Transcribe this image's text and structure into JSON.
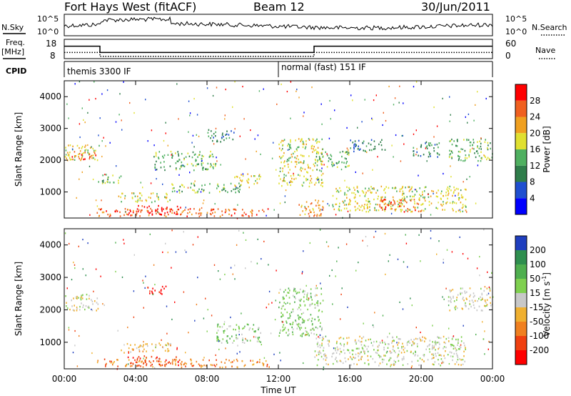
{
  "header": {
    "station": "Fort Hays West (fitACF)",
    "beam": "Beam 12",
    "date": "30/Jun/2011"
  },
  "side_labels": {
    "nsky": "N.Sky",
    "nsearch": "N.Search",
    "freq_line1": "Freq.",
    "freq_line2": "[MHz]",
    "nave": "Nave",
    "cpid": "CPID"
  },
  "noise_panel": {
    "left_ticks": [
      "10^5",
      "10^0"
    ],
    "right_ticks": [
      "10^5",
      "10^0"
    ]
  },
  "freq_panel": {
    "left_ticks": [
      "18",
      "8"
    ],
    "right_ticks": [
      "60",
      "0"
    ],
    "freq_steps": [
      [
        0,
        15.0
      ],
      [
        2.0,
        15.0
      ],
      [
        2.0,
        11.0
      ],
      [
        14.0,
        11.0
      ],
      [
        14.0,
        15.0
      ],
      [
        24.0,
        15.0
      ]
    ],
    "nave_steps": [
      [
        0,
        11.0
      ],
      [
        2.0,
        11.0
      ],
      [
        2.0,
        8.5
      ],
      [
        14.0,
        8.5
      ],
      [
        14.0,
        11.0
      ],
      [
        24.0,
        11.0
      ]
    ]
  },
  "cpid_panel": {
    "segments": [
      {
        "start_hour": 0,
        "label": "themis 3300 IF"
      },
      {
        "start_hour": 12,
        "label": "normal (fast) 151 IF"
      }
    ]
  },
  "chart_data": [
    {
      "type": "heatmap",
      "name": "power",
      "ylabel": "Slant Range [km]",
      "xlabel": "Time UT",
      "xlim": [
        0,
        24
      ],
      "ylim": [
        180,
        4500
      ],
      "y_ticks": [
        1000,
        2000,
        3000,
        4000
      ],
      "y_tick_labels": [
        "1000",
        "2000",
        "3000",
        "4000"
      ],
      "x_ticks": [
        0,
        4,
        8,
        12,
        16,
        20,
        24
      ],
      "x_tick_labels": [
        "00:00",
        "04:00",
        "08:00",
        "12:00",
        "16:00",
        "20:00",
        "00:00"
      ],
      "colorbar": {
        "label": "Power [dB]",
        "ticks": [
          "4",
          "8",
          "12",
          "16",
          "20",
          "24",
          "28"
        ],
        "colors": [
          "#0000ff",
          "#1f4fd0",
          "#2f7d4a",
          "#4fb060",
          "#e0e030",
          "#f0a020",
          "#f06020",
          "#ff0000"
        ]
      },
      "regions": [
        {
          "t0": 0.0,
          "t1": 2.0,
          "r0": 2000,
          "r1": 2500,
          "level": 4
        },
        {
          "t0": 0.2,
          "t1": 1.8,
          "r0": 2050,
          "r1": 2300,
          "level": 6
        },
        {
          "t0": 1.8,
          "t1": 11.5,
          "r0": 250,
          "r1": 500,
          "level": 6
        },
        {
          "t0": 3.5,
          "t1": 6.5,
          "r0": 300,
          "r1": 600,
          "level": 7
        },
        {
          "t0": 1.8,
          "t1": 3.2,
          "r0": 1300,
          "r1": 1600,
          "level": 3
        },
        {
          "t0": 3.0,
          "t1": 6.0,
          "r0": 700,
          "r1": 1000,
          "level": 4
        },
        {
          "t0": 5.0,
          "t1": 8.5,
          "r0": 1700,
          "r1": 2300,
          "level": 3
        },
        {
          "t0": 6.0,
          "t1": 10.0,
          "r0": 1000,
          "r1": 1300,
          "level": 3
        },
        {
          "t0": 8.0,
          "t1": 9.5,
          "r0": 2600,
          "r1": 3000,
          "level": 2
        },
        {
          "t0": 9.5,
          "t1": 11.0,
          "r0": 1200,
          "r1": 1600,
          "level": 4
        },
        {
          "t0": 12.0,
          "t1": 14.5,
          "r0": 1200,
          "r1": 2700,
          "level": 4
        },
        {
          "t0": 13.0,
          "t1": 14.5,
          "r0": 250,
          "r1": 800,
          "level": 5
        },
        {
          "t0": 14.0,
          "t1": 16.0,
          "r0": 1800,
          "r1": 2300,
          "level": 3
        },
        {
          "t0": 15.0,
          "t1": 22.5,
          "r0": 400,
          "r1": 1200,
          "level": 4
        },
        {
          "t0": 17.5,
          "t1": 20.0,
          "r0": 400,
          "r1": 800,
          "level": 6
        },
        {
          "t0": 16.0,
          "t1": 18.0,
          "r0": 2300,
          "r1": 2700,
          "level": 2
        },
        {
          "t0": 19.5,
          "t1": 21.0,
          "r0": 2100,
          "r1": 2600,
          "level": 2
        },
        {
          "t0": 21.5,
          "t1": 24.0,
          "r0": 2000,
          "r1": 2700,
          "level": 3
        }
      ]
    },
    {
      "type": "heatmap",
      "name": "velocity",
      "ylabel": "Slant Range [km]",
      "xlabel": "Time UT",
      "xlim": [
        0,
        24
      ],
      "ylim": [
        180,
        4500
      ],
      "y_ticks": [
        1000,
        2000,
        3000,
        4000
      ],
      "y_tick_labels": [
        "1000",
        "2000",
        "3000",
        "4000"
      ],
      "x_ticks": [
        0,
        4,
        8,
        12,
        16,
        20,
        24
      ],
      "x_tick_labels": [
        "00:00",
        "04:00",
        "08:00",
        "12:00",
        "16:00",
        "20:00",
        "00:00"
      ],
      "colorbar": {
        "label": "Velocity [m s^-1]",
        "ticks": [
          "200",
          "100",
          "50",
          "15",
          "-15",
          "-50",
          "-100",
          "-200"
        ],
        "colors": [
          "#1f3fbf",
          "#2f8f4f",
          "#4faf4f",
          "#7fd04f",
          "#c8c8c8",
          "#f0b030",
          "#f08020",
          "#f04010",
          "#ff0000"
        ]
      },
      "regions": [
        {
          "t0": 0.0,
          "t1": 2.0,
          "r0": 2000,
          "r1": 2500,
          "level": 4
        },
        {
          "t0": 1.8,
          "t1": 11.5,
          "r0": 250,
          "r1": 500,
          "level": 6
        },
        {
          "t0": 3.5,
          "t1": 6.5,
          "r0": 300,
          "r1": 600,
          "level": 7
        },
        {
          "t0": 3.0,
          "t1": 6.0,
          "r0": 700,
          "r1": 1000,
          "level": 5
        },
        {
          "t0": 4.5,
          "t1": 5.7,
          "r0": 2450,
          "r1": 2750,
          "level": 8
        },
        {
          "t0": 8.5,
          "t1": 11.0,
          "r0": 1000,
          "r1": 1600,
          "level": 3
        },
        {
          "t0": 12.0,
          "t1": 14.5,
          "r0": 1200,
          "r1": 2700,
          "level": 3
        },
        {
          "t0": 14.0,
          "t1": 22.5,
          "r0": 300,
          "r1": 1200,
          "level": 4
        },
        {
          "t0": 21.5,
          "t1": 24.0,
          "r0": 2000,
          "r1": 2700,
          "level": 4
        }
      ]
    }
  ]
}
